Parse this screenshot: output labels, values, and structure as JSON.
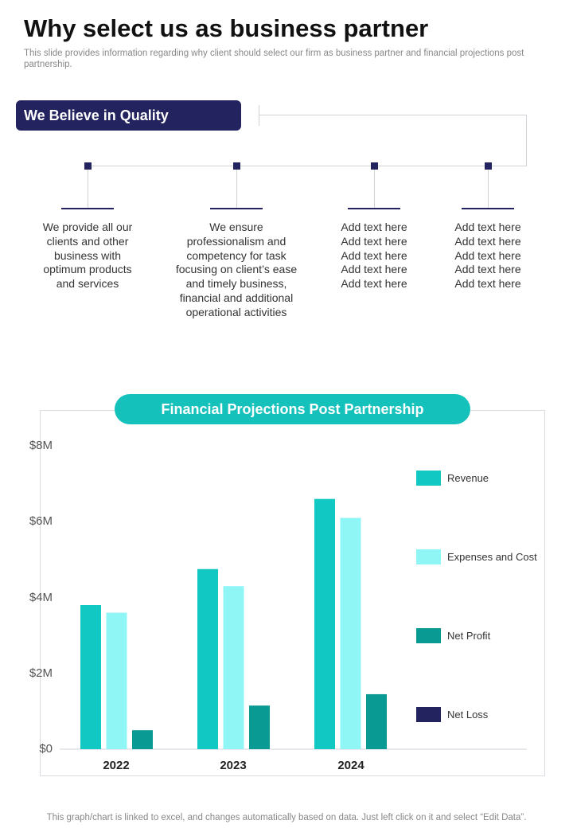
{
  "header": {
    "title": "Why select us as business partner",
    "subtitle": "This slide provides information regarding why client should select our firm as business partner and financial projections post partnership."
  },
  "quality": {
    "label": "We Believe in Quality",
    "columns": [
      {
        "lines": [
          "We provide all our",
          "clients and other",
          "business with",
          "optimum products",
          "and services"
        ]
      },
      {
        "lines": [
          "We ensure",
          "professionalism and",
          "competency for task",
          "focusing on client’s ease",
          "and timely business,",
          "financial and additional",
          "operational  activities"
        ]
      },
      {
        "lines": [
          "Add text here",
          "Add text here",
          "Add text here",
          "Add text here",
          "Add text here"
        ]
      },
      {
        "lines": [
          "Add text here",
          "Add text here",
          "Add text here",
          "Add text here",
          "Add text here"
        ]
      }
    ]
  },
  "colors": {
    "navy": "#23245f",
    "revenue": "#12c8c2",
    "expenses": "#8ff5f5",
    "net_profit": "#0a9a94",
    "net_loss": "#23245f"
  },
  "chart_data": {
    "type": "bar",
    "title": "Financial Projections Post Partnership",
    "categories": [
      "2022",
      "2023",
      "2024"
    ],
    "series": [
      {
        "name": "Revenue",
        "values": [
          3.8,
          4.75,
          6.6
        ]
      },
      {
        "name": "Expenses and Cost",
        "values": [
          3.6,
          4.3,
          6.1
        ]
      },
      {
        "name": "Net Profit",
        "values": [
          0.5,
          1.15,
          1.45
        ]
      },
      {
        "name": "Net Loss",
        "values": [
          0,
          0,
          0
        ]
      }
    ],
    "ylim": [
      0,
      8
    ],
    "yticks": [
      0,
      2,
      4,
      6,
      8
    ],
    "ytick_labels": [
      "$0",
      "$2M",
      "$4M",
      "$6M",
      "$8M"
    ],
    "xlabel": "",
    "ylabel": "",
    "legend_position": "right"
  },
  "footer": "This graph/chart is linked to excel,  and changes automatically based on data. Just left click on it and select “Edit Data”."
}
